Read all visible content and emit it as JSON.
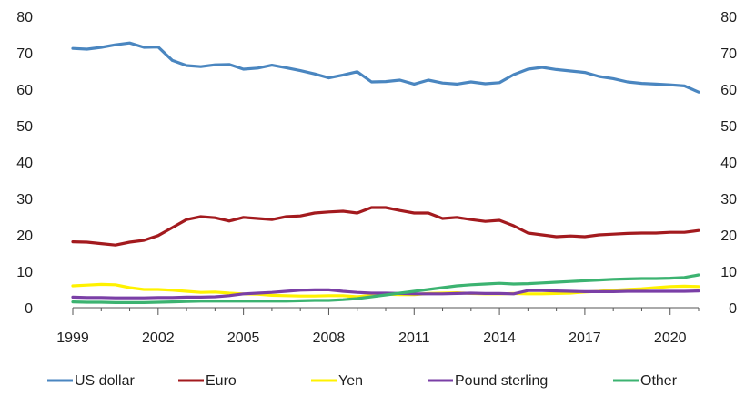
{
  "chart_data": {
    "type": "line",
    "title": "",
    "xlabel": "",
    "ylabel": "",
    "ylim": [
      0,
      80
    ],
    "xlim": [
      1999,
      2021
    ],
    "y_ticks": [
      0,
      10,
      20,
      30,
      40,
      50,
      60,
      70,
      80
    ],
    "y_tick_labels": [
      "0",
      "10",
      "20",
      "30",
      "40",
      "50",
      "60",
      "70",
      "80"
    ],
    "x_ticks": [
      1999,
      2002,
      2005,
      2008,
      2011,
      2014,
      2017,
      2020
    ],
    "x_tick_labels": [
      "1999",
      "2002",
      "2005",
      "2008",
      "2011",
      "2014",
      "2017",
      "2020"
    ],
    "dual_y_axis": true,
    "grid": false,
    "legend_position": "bottom",
    "series": [
      {
        "name": "US dollar",
        "color": "#4a86c0",
        "x": [
          1999,
          1999.5,
          2000,
          2000.5,
          2001,
          2001.5,
          2002,
          2002.5,
          2003,
          2003.5,
          2004,
          2004.5,
          2005,
          2005.5,
          2006,
          2006.5,
          2007,
          2007.5,
          2008,
          2008.5,
          2009,
          2009.5,
          2010,
          2010.5,
          2011,
          2011.5,
          2012,
          2012.5,
          2013,
          2013.5,
          2014,
          2014.5,
          2015,
          2015.5,
          2016,
          2016.5,
          2017,
          2017.5,
          2018,
          2018.5,
          2019,
          2019.5,
          2020,
          2020.5,
          2021
        ],
        "values": [
          71.2,
          71.0,
          71.5,
          72.2,
          72.7,
          71.5,
          71.6,
          67.9,
          66.5,
          66.2,
          66.7,
          66.8,
          65.5,
          65.8,
          66.6,
          65.9,
          65.1,
          64.2,
          63.1,
          63.9,
          64.8,
          62.0,
          62.1,
          62.5,
          61.4,
          62.5,
          61.7,
          61.4,
          62.0,
          61.5,
          61.8,
          64.0,
          65.5,
          66.0,
          65.4,
          65.0,
          64.6,
          63.5,
          62.9,
          62.0,
          61.6,
          61.4,
          61.2,
          60.9,
          59.2
        ]
      },
      {
        "name": "Euro",
        "color": "#a31a1e",
        "x": [
          1999,
          1999.5,
          2000,
          2000.5,
          2001,
          2001.5,
          2002,
          2002.5,
          2003,
          2003.5,
          2004,
          2004.5,
          2005,
          2005.5,
          2006,
          2006.5,
          2007,
          2007.5,
          2008,
          2008.5,
          2009,
          2009.5,
          2010,
          2010.5,
          2011,
          2011.5,
          2012,
          2012.5,
          2013,
          2013.5,
          2014,
          2014.5,
          2015,
          2015.5,
          2016,
          2016.5,
          2017,
          2017.5,
          2018,
          2018.5,
          2019,
          2019.5,
          2020,
          2020.5,
          2021
        ],
        "values": [
          18.1,
          18.0,
          17.6,
          17.2,
          18.0,
          18.5,
          19.8,
          22.0,
          24.2,
          25.0,
          24.7,
          23.8,
          24.8,
          24.5,
          24.2,
          25.0,
          25.2,
          26.0,
          26.3,
          26.5,
          26.0,
          27.5,
          27.5,
          26.7,
          26.0,
          26.0,
          24.5,
          24.8,
          24.2,
          23.7,
          24.0,
          22.5,
          20.5,
          20.0,
          19.5,
          19.7,
          19.5,
          20.0,
          20.2,
          20.4,
          20.5,
          20.5,
          20.7,
          20.7,
          21.2
        ]
      },
      {
        "name": "Yen",
        "color": "#fff200",
        "x": [
          1999,
          1999.5,
          2000,
          2000.5,
          2001,
          2001.5,
          2002,
          2002.5,
          2003,
          2003.5,
          2004,
          2004.5,
          2005,
          2005.5,
          2006,
          2006.5,
          2007,
          2007.5,
          2008,
          2008.5,
          2009,
          2009.5,
          2010,
          2010.5,
          2011,
          2011.5,
          2012,
          2012.5,
          2013,
          2013.5,
          2014,
          2014.5,
          2015,
          2015.5,
          2016,
          2016.5,
          2017,
          2017.5,
          2018,
          2018.5,
          2019,
          2019.5,
          2020,
          2020.5,
          2021
        ],
        "values": [
          6.0,
          6.2,
          6.4,
          6.3,
          5.5,
          5.0,
          5.0,
          4.8,
          4.5,
          4.2,
          4.3,
          4.0,
          3.8,
          3.7,
          3.4,
          3.3,
          3.2,
          3.2,
          3.3,
          3.3,
          3.0,
          3.4,
          3.7,
          3.6,
          3.6,
          3.9,
          4.0,
          4.1,
          3.9,
          3.8,
          3.8,
          3.9,
          3.8,
          3.8,
          3.9,
          4.0,
          4.3,
          4.5,
          4.8,
          5.0,
          5.2,
          5.5,
          5.8,
          5.9,
          5.8
        ]
      },
      {
        "name": "Pound sterling",
        "color": "#7a3fa6",
        "x": [
          1999,
          1999.5,
          2000,
          2000.5,
          2001,
          2001.5,
          2002,
          2002.5,
          2003,
          2003.5,
          2004,
          2004.5,
          2005,
          2005.5,
          2006,
          2006.5,
          2007,
          2007.5,
          2008,
          2008.5,
          2009,
          2009.5,
          2010,
          2010.5,
          2011,
          2011.5,
          2012,
          2012.5,
          2013,
          2013.5,
          2014,
          2014.5,
          2015,
          2015.5,
          2016,
          2016.5,
          2017,
          2017.5,
          2018,
          2018.5,
          2019,
          2019.5,
          2020,
          2020.5,
          2021
        ],
        "values": [
          2.9,
          2.8,
          2.8,
          2.7,
          2.7,
          2.7,
          2.8,
          2.8,
          2.9,
          2.9,
          3.0,
          3.3,
          3.8,
          4.0,
          4.2,
          4.5,
          4.8,
          4.9,
          4.9,
          4.5,
          4.2,
          4.0,
          4.0,
          3.9,
          3.8,
          3.8,
          3.8,
          3.9,
          4.0,
          3.9,
          3.9,
          3.8,
          4.7,
          4.7,
          4.6,
          4.5,
          4.4,
          4.4,
          4.4,
          4.5,
          4.5,
          4.5,
          4.5,
          4.5,
          4.6
        ]
      },
      {
        "name": "Other",
        "color": "#3cb371",
        "x": [
          1999,
          1999.5,
          2000,
          2000.5,
          2001,
          2001.5,
          2002,
          2002.5,
          2003,
          2003.5,
          2004,
          2004.5,
          2005,
          2005.5,
          2006,
          2006.5,
          2007,
          2007.5,
          2008,
          2008.5,
          2009,
          2009.5,
          2010,
          2010.5,
          2011,
          2011.5,
          2012,
          2012.5,
          2013,
          2013.5,
          2014,
          2014.5,
          2015,
          2015.5,
          2016,
          2016.5,
          2017,
          2017.5,
          2018,
          2018.5,
          2019,
          2019.5,
          2020,
          2020.5,
          2021
        ],
        "values": [
          1.6,
          1.5,
          1.5,
          1.4,
          1.4,
          1.4,
          1.5,
          1.6,
          1.7,
          1.8,
          1.8,
          1.8,
          1.8,
          1.8,
          1.8,
          1.8,
          1.9,
          2.0,
          2.0,
          2.2,
          2.5,
          3.0,
          3.5,
          4.0,
          4.5,
          5.0,
          5.5,
          6.0,
          6.3,
          6.5,
          6.7,
          6.5,
          6.6,
          6.8,
          7.0,
          7.2,
          7.4,
          7.6,
          7.8,
          7.9,
          8.0,
          8.0,
          8.1,
          8.3,
          9.0
        ]
      }
    ]
  }
}
